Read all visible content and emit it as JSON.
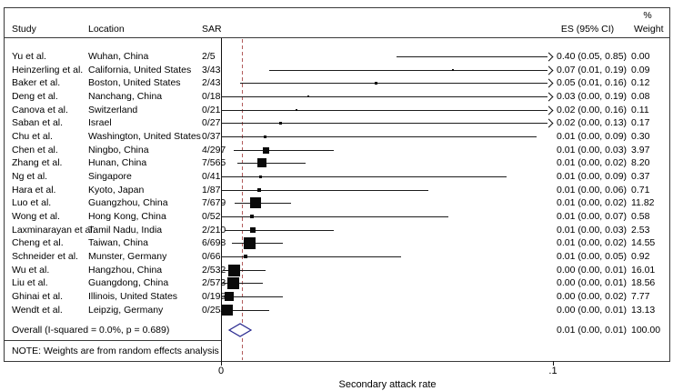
{
  "header": {
    "study": "Study",
    "location": "Location",
    "sar": "SAR",
    "es": "ES (95% CI)",
    "pct": "%",
    "weight": "Weight"
  },
  "note": "NOTE: Weights are from random effects analysis",
  "colors": {
    "null_line": "#b25b5b",
    "diamond_stroke": "#28288f",
    "ci_line": "#1c1c1c",
    "marker": "#0a0a0a"
  },
  "chart_data": {
    "type": "forest",
    "xlabel": "Secondary attack rate",
    "xticks": [
      {
        "value": 0,
        "label": "0"
      },
      {
        "value": 0.1,
        "label": ".1"
      }
    ],
    "xlim": [
      0,
      0.115
    ],
    "dashed_line_value": 0.0063,
    "studies": [
      {
        "study": "Yu et al.",
        "location": "Wuhan, China",
        "sar": "2/5",
        "es_ci": "0.40 (0.05, 0.85)",
        "weight": "0.00",
        "es": 0.4,
        "lo": 0.053,
        "hi": 0.853,
        "w": 0.0,
        "arrow": true
      },
      {
        "study": "Heinzerling et al.",
        "location": "California, United States",
        "sar": "3/43",
        "es_ci": "0.07 (0.01, 0.19)",
        "weight": "0.09",
        "es": 0.0698,
        "lo": 0.0146,
        "hi": 0.19,
        "w": 0.09,
        "arrow": true
      },
      {
        "study": "Baker et al.",
        "location": "Boston, United States",
        "sar": "2/43",
        "es_ci": "0.05 (0.01, 0.16)",
        "weight": "0.12",
        "es": 0.0465,
        "lo": 0.0057,
        "hi": 0.158,
        "w": 0.12,
        "arrow": true
      },
      {
        "study": "Deng et al.",
        "location": "Nanchang, China",
        "sar": "0/18",
        "es_ci": "0.03 (0.00, 0.19)",
        "weight": "0.08",
        "es": 0.0263,
        "lo": 0,
        "hi": 0.185,
        "w": 0.08,
        "arrow": true
      },
      {
        "study": "Canova et al.",
        "location": "Switzerland",
        "sar": "0/21",
        "es_ci": "0.02 (0.00, 0.16)",
        "weight": "0.11",
        "es": 0.0227,
        "lo": 0,
        "hi": 0.161,
        "w": 0.11,
        "arrow": true
      },
      {
        "study": "Saban et al.",
        "location": "Israel",
        "sar": "0/27",
        "es_ci": "0.02 (0.00, 0.13)",
        "weight": "0.17",
        "es": 0.0179,
        "lo": 0,
        "hi": 0.128,
        "w": 0.17,
        "arrow": true
      },
      {
        "study": "Chu et al.",
        "location": "Washington, United States",
        "sar": "0/37",
        "es_ci": "0.01 (0.00, 0.09)",
        "weight": "0.30",
        "es": 0.0132,
        "lo": 0,
        "hi": 0.095,
        "w": 0.3,
        "arrow": false
      },
      {
        "study": "Chen et al.",
        "location": "Ningbo, China",
        "sar": "4/297",
        "es_ci": "0.01 (0.00, 0.03)",
        "weight": "3.97",
        "es": 0.0135,
        "lo": 0.0037,
        "hi": 0.034,
        "w": 3.97,
        "arrow": false
      },
      {
        "study": "Zhang et al.",
        "location": "Hunan, China",
        "sar": "7/565",
        "es_ci": "0.01 (0.00, 0.02)",
        "weight": "8.20",
        "es": 0.0124,
        "lo": 0.005,
        "hi": 0.0254,
        "w": 8.2,
        "arrow": false
      },
      {
        "study": "Ng et al.",
        "location": "Singapore",
        "sar": "0/41",
        "es_ci": "0.01 (0.00, 0.09)",
        "weight": "0.37",
        "es": 0.0119,
        "lo": 0,
        "hi": 0.086,
        "w": 0.37,
        "arrow": false
      },
      {
        "study": "Hara et al.",
        "location": "Kyoto, Japan",
        "sar": "1/87",
        "es_ci": "0.01 (0.00, 0.06)",
        "weight": "0.71",
        "es": 0.0115,
        "lo": 0.0003,
        "hi": 0.0624,
        "w": 0.71,
        "arrow": false
      },
      {
        "study": "Luo et al.",
        "location": "Guangzhou, China",
        "sar": "7/679",
        "es_ci": "0.01 (0.00, 0.02)",
        "weight": "11.82",
        "es": 0.0103,
        "lo": 0.0042,
        "hi": 0.0211,
        "w": 11.82,
        "arrow": false
      },
      {
        "study": "Wong et al.",
        "location": "Hong Kong, China",
        "sar": "0/52",
        "es_ci": "0.01 (0.00, 0.07)",
        "weight": "0.58",
        "es": 0.0094,
        "lo": 0,
        "hi": 0.0685,
        "w": 0.58,
        "arrow": false
      },
      {
        "study": "Laxminarayan et al.",
        "location": "Tamil Nadu, India",
        "sar": "2/210",
        "es_ci": "0.01 (0.00, 0.03)",
        "weight": "2.53",
        "es": 0.0095,
        "lo": 0.0012,
        "hi": 0.034,
        "w": 2.53,
        "arrow": false
      },
      {
        "study": "Cheng et al.",
        "location": "Taiwan, China",
        "sar": "6/698",
        "es_ci": "0.01 (0.00, 0.02)",
        "weight": "14.55",
        "es": 0.0086,
        "lo": 0.0032,
        "hi": 0.0186,
        "w": 14.55,
        "arrow": false
      },
      {
        "study": "Schneider et al.",
        "location": "Munster, Germany",
        "sar": "0/66",
        "es_ci": "0.01 (0.00, 0.05)",
        "weight": "0.92",
        "es": 0.0075,
        "lo": 0,
        "hi": 0.0543,
        "w": 0.92,
        "arrow": false
      },
      {
        "study": "Wu et al.",
        "location": "Hangzhou, China",
        "sar": "2/532",
        "es_ci": "0.00 (0.00, 0.01)",
        "weight": "16.01",
        "es": 0.0038,
        "lo": 0.0005,
        "hi": 0.0135,
        "w": 16.01,
        "arrow": false
      },
      {
        "study": "Liu et al.",
        "location": "Guangdong, China",
        "sar": "2/573",
        "es_ci": "0.00 (0.00, 0.01)",
        "weight": "18.56",
        "es": 0.0035,
        "lo": 0.0004,
        "hi": 0.0126,
        "w": 18.56,
        "arrow": false
      },
      {
        "study": "Ghinai et al.",
        "location": "Illinois, United States",
        "sar": "0/195",
        "es_ci": "0.00 (0.00, 0.02)",
        "weight": "7.77",
        "es": 0.0026,
        "lo": 0,
        "hi": 0.0187,
        "w": 7.77,
        "arrow": false
      },
      {
        "study": "Wendt et al.",
        "location": "Leipzig, Germany",
        "sar": "0/254",
        "es_ci": "0.00 (0.00, 0.01)",
        "weight": "13.13",
        "es": 0.002,
        "lo": 0,
        "hi": 0.0144,
        "w": 13.13,
        "arrow": false
      }
    ],
    "overall": {
      "label": "Overall  (I-squared = 0.0%, p = 0.689)",
      "es_ci": "0.01 (0.00, 0.01)",
      "weight": "100.00",
      "diamond": {
        "lo": 0.0025,
        "center": 0.00575,
        "hi": 0.009
      }
    }
  }
}
